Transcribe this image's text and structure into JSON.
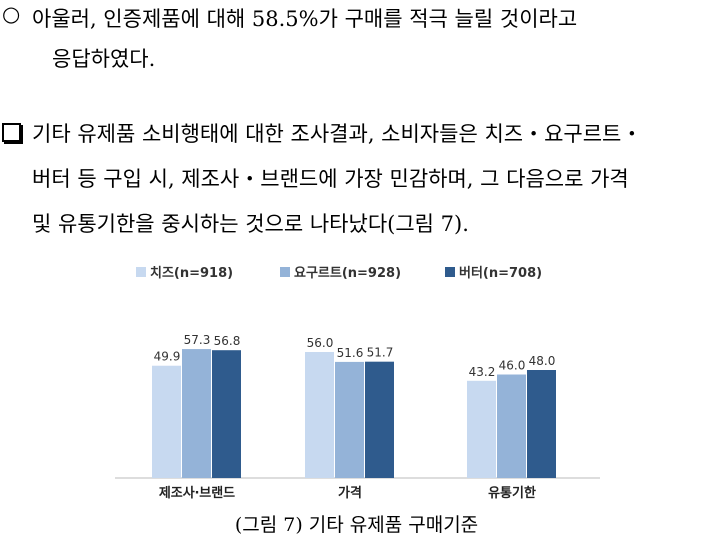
{
  "text": {
    "p1_line1": "아울러, 인증제품에 대해 58.5%가 구매를 적극 늘릴 것이라고",
    "p1_line2": "응답하였다.",
    "p2_line1": "기타 유제품 소비행태에 대한 조사결과, 소비자들은 치즈‧요구르트‧",
    "p2_line2": "버터 등 구입 시, 제조사‧브랜드에 가장 민감하며, 그 다음으로 가격",
    "p2_line3": "및 유통기한을 중시하는 것으로 나타났다(그림 7).",
    "bullet_circle": "○",
    "caption": "(그림 7) 기타 유제품 구매기준"
  },
  "colors": {
    "series": [
      "#c7d9f0",
      "#94b3d8",
      "#2f5b8d"
    ]
  },
  "chart_data": {
    "type": "bar",
    "title": "",
    "xlabel": "",
    "ylabel": "",
    "categories": [
      "제조사‧브랜드",
      "가격",
      "유통기한"
    ],
    "series": [
      {
        "name": "치즈(n=918)",
        "values": [
          49.9,
          56.0,
          43.2
        ]
      },
      {
        "name": "요구르트(n=928)",
        "values": [
          57.3,
          51.6,
          46.0
        ]
      },
      {
        "name": "버터(n=708)",
        "values": [
          56.8,
          51.7,
          48.0
        ]
      }
    ],
    "ylim": [
      0,
      60
    ],
    "grid": false,
    "legend": "top"
  }
}
